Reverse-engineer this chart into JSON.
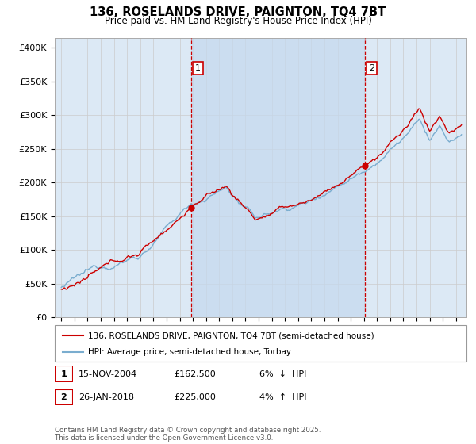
{
  "title": "136, ROSELANDS DRIVE, PAIGNTON, TQ4 7BT",
  "subtitle": "Price paid vs. HM Land Registry's House Price Index (HPI)",
  "ylabel_ticks": [
    "£0",
    "£50K",
    "£100K",
    "£150K",
    "£200K",
    "£250K",
    "£300K",
    "£350K",
    "£400K"
  ],
  "ytick_values": [
    0,
    50000,
    100000,
    150000,
    200000,
    250000,
    300000,
    350000,
    400000
  ],
  "ylim": [
    0,
    415000
  ],
  "sale1": {
    "date_num": 2004.88,
    "price": 162500,
    "label": "1",
    "pct": "6%",
    "direction": "↓",
    "date_str": "15-NOV-2004"
  },
  "sale2": {
    "date_num": 2018.07,
    "price": 225000,
    "label": "2",
    "pct": "4%",
    "direction": "↑",
    "date_str": "26-JAN-2018"
  },
  "line1_label": "136, ROSELANDS DRIVE, PAIGNTON, TQ4 7BT (semi-detached house)",
  "line2_label": "HPI: Average price, semi-detached house, Torbay",
  "line1_color": "#cc0000",
  "line2_color": "#7aadcf",
  "vline_color": "#cc0000",
  "annotation_box_color": "#cc0000",
  "grid_color": "#cccccc",
  "bg_color": "#ffffff",
  "plot_bg_color": "#dce9f5",
  "shade_color": "#c5d9ee",
  "footnote": "Contains HM Land Registry data © Crown copyright and database right 2025.\nThis data is licensed under the Open Government Licence v3.0.",
  "xlim_start": 1994.5,
  "xlim_end": 2025.8
}
